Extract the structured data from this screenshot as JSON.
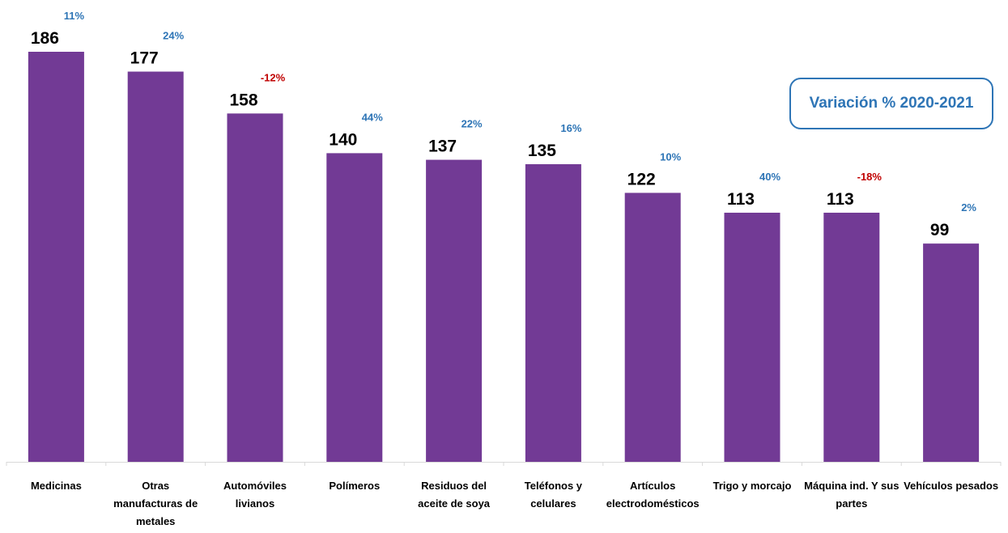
{
  "chart_data": {
    "type": "bar",
    "categories": [
      [
        "Medicinas"
      ],
      [
        "Otras",
        "manufacturas de",
        "metales"
      ],
      [
        "Automóviles",
        "livianos"
      ],
      [
        "Polímeros"
      ],
      [
        "Residuos del",
        "aceite de soya"
      ],
      [
        "Teléfonos y",
        "celulares"
      ],
      [
        "Artículos",
        "electrodomésticos"
      ],
      [
        "Trigo y morcajo"
      ],
      [
        "Máquina ind. Y sus",
        "partes"
      ],
      [
        "Vehículos pesados"
      ]
    ],
    "values": [
      186,
      177,
      158,
      140,
      137,
      135,
      122,
      113,
      113,
      99
    ],
    "variations": [
      "11%",
      "24%",
      "-12%",
      "44%",
      "22%",
      "16%",
      "10%",
      "40%",
      "-18%",
      "2%"
    ],
    "legend_label": "Variación % 2020-2021",
    "ylim": [
      0,
      186
    ],
    "grid": false
  },
  "colors": {
    "bar": "#723a95",
    "positive": "#2e75b6",
    "negative": "#c00000",
    "axis": "#d9d9d9"
  }
}
